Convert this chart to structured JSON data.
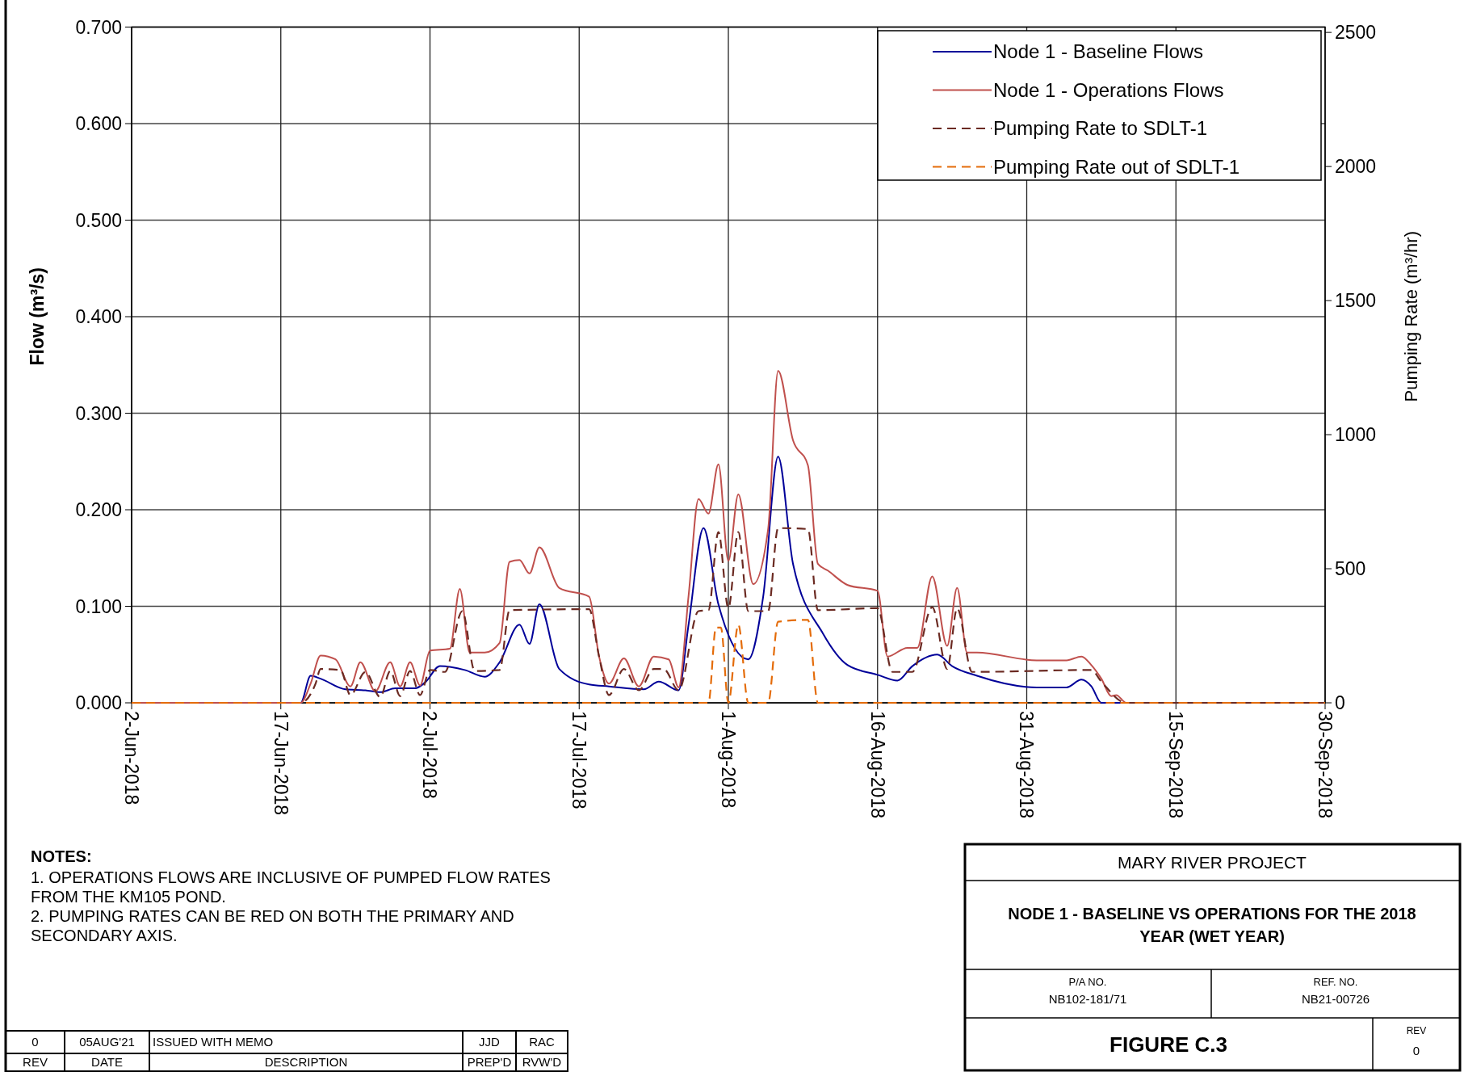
{
  "chart_data": {
    "type": "line",
    "title": "NODE 1 - BASELINE VS OPERATIONS FOR THE 2018 YEAR (WET YEAR)",
    "ylabel": "Flow (m³/s)",
    "y2label": "Pumping Rate (m³/hr)",
    "xlim": [
      "2018-06-02",
      "2018-09-30"
    ],
    "xticks": [
      {
        "value": "2018-06-02",
        "label": "2-Jun-2018"
      },
      {
        "value": "2018-06-17",
        "label": "17-Jun-2018"
      },
      {
        "value": "2018-07-02",
        "label": "2-Jul-2018"
      },
      {
        "value": "2018-07-17",
        "label": "17-Jul-2018"
      },
      {
        "value": "2018-08-01",
        "label": "1-Aug-2018"
      },
      {
        "value": "2018-08-16",
        "label": "16-Aug-2018"
      },
      {
        "value": "2018-08-31",
        "label": "31-Aug-2018"
      },
      {
        "value": "2018-09-15",
        "label": "15-Sep-2018"
      },
      {
        "value": "2018-09-30",
        "label": "30-Sep-2018"
      }
    ],
    "ylim": [
      0,
      0.7
    ],
    "yticks": [
      {
        "value": 0,
        "label": "0.000"
      },
      {
        "value": 0.1,
        "label": "0.100"
      },
      {
        "value": 0.2,
        "label": "0.200"
      },
      {
        "value": 0.3,
        "label": "0.300"
      },
      {
        "value": 0.4,
        "label": "0.400"
      },
      {
        "value": 0.5,
        "label": "0.500"
      },
      {
        "value": 0.6,
        "label": "0.600"
      },
      {
        "value": 0.7,
        "label": "0.700"
      }
    ],
    "y2lim": [
      0,
      2520
    ],
    "y2ticks": [
      0,
      500,
      1000,
      1500,
      2000,
      2500
    ],
    "grid": true,
    "legend": "top right",
    "series": [
      {
        "name": "Node 1 - Baseline Flows",
        "color": "#000099",
        "line_style": "solid",
        "x": [
          "2018-06-02",
          "2018-06-19",
          "2018-06-20",
          "2018-06-21",
          "2018-06-23T12:00",
          "2018-06-25T12:00",
          "2018-06-27",
          "2018-06-28T12:00",
          "2018-06-30T12:00",
          "2018-07-01T12:00",
          "2018-07-03",
          "2018-07-05T12:00",
          "2018-07-07T12:00",
          "2018-07-09",
          "2018-07-11",
          "2018-07-12",
          "2018-07-13",
          "2018-07-15",
          "2018-07-18",
          "2018-07-20",
          "2018-07-23T12:00",
          "2018-07-25",
          "2018-07-27",
          "2018-07-28",
          "2018-07-29T12:00",
          "2018-07-31",
          "2018-08-03",
          "2018-08-04T12:00",
          "2018-08-06",
          "2018-08-07T12:00",
          "2018-08-10T12:00",
          "2018-08-13",
          "2018-08-16",
          "2018-08-18",
          "2018-08-19T12:00",
          "2018-08-22",
          "2018-08-23T12:00",
          "2018-08-26",
          "2018-09-01",
          "2018-09-04",
          "2018-09-05T12:00",
          "2018-09-06T12:00",
          "2018-09-07T12:00",
          "2018-09-30"
        ],
        "values": [
          0,
          0,
          0.028,
          0.025,
          0.014,
          0.013,
          0.011,
          0.015,
          0.015,
          0.021,
          0.038,
          0.034,
          0.027,
          0.042,
          0.081,
          0.061,
          0.102,
          0.035,
          0.019,
          0.017,
          0.014,
          0.022,
          0.013,
          0.081,
          0.181,
          0.102,
          0.045,
          0.11,
          0.255,
          0.144,
          0.072,
          0.039,
          0.029,
          0.023,
          0.038,
          0.05,
          0.038,
          0.028,
          0.016,
          0.016,
          0.024,
          0.017,
          0,
          0
        ]
      },
      {
        "name": "Node 1 - Operations Flows",
        "color": "#c0504d",
        "line_style": "solid",
        "x": [
          "2018-06-02",
          "2018-06-19",
          "2018-06-20",
          "2018-06-21",
          "2018-06-22T12:00",
          "2018-06-24",
          "2018-06-25",
          "2018-06-26T12:00",
          "2018-06-28",
          "2018-06-29",
          "2018-06-30",
          "2018-07-01",
          "2018-07-02",
          "2018-07-04",
          "2018-07-05",
          "2018-07-06",
          "2018-07-07T12:00",
          "2018-07-09",
          "2018-07-10",
          "2018-07-11",
          "2018-07-12",
          "2018-07-13",
          "2018-07-15",
          "2018-07-18",
          "2018-07-19",
          "2018-07-20",
          "2018-07-21T12:00",
          "2018-07-23",
          "2018-07-24T12:00",
          "2018-07-26",
          "2018-07-27",
          "2018-07-28",
          "2018-07-29",
          "2018-07-30",
          "2018-07-31",
          "2018-08-01",
          "2018-08-02",
          "2018-08-03T12:00",
          "2018-08-05",
          "2018-08-06",
          "2018-08-07T12:00",
          "2018-08-09",
          "2018-08-10",
          "2018-08-11",
          "2018-08-13",
          "2018-08-16",
          "2018-08-17",
          "2018-08-19",
          "2018-08-20",
          "2018-08-21T12:00",
          "2018-08-23",
          "2018-08-24",
          "2018-08-25",
          "2018-08-26",
          "2018-09-01",
          "2018-09-04",
          "2018-09-05T12:00",
          "2018-09-06T12:00",
          "2018-09-07T12:00",
          "2018-09-08T12:00",
          "2018-09-09",
          "2018-09-10",
          "2018-09-30"
        ],
        "values": [
          0,
          0,
          0.02,
          0.049,
          0.045,
          0.017,
          0.042,
          0.012,
          0.042,
          0.017,
          0.042,
          0.018,
          0.054,
          0.056,
          0.118,
          0.052,
          0.052,
          0.062,
          0.146,
          0.148,
          0.134,
          0.161,
          0.119,
          0.11,
          0.048,
          0.02,
          0.046,
          0.017,
          0.048,
          0.045,
          0.016,
          0.111,
          0.211,
          0.196,
          0.247,
          0.147,
          0.216,
          0.123,
          0.18,
          0.344,
          0.272,
          0.246,
          0.144,
          0.137,
          0.122,
          0.116,
          0.048,
          0.057,
          0.057,
          0.131,
          0.059,
          0.119,
          0.052,
          0.052,
          0.044,
          0.044,
          0.048,
          0.039,
          0.025,
          0.007,
          0.008,
          0,
          0
        ]
      },
      {
        "name": "Pumping Rate to SDLT-1",
        "color": "#6b2a22",
        "line_style": "dashed",
        "x": [
          "2018-06-02",
          "2018-06-19",
          "2018-06-20T12:00",
          "2018-06-21",
          "2018-06-23",
          "2018-06-24",
          "2018-06-25T12:00",
          "2018-06-27",
          "2018-06-28",
          "2018-06-29",
          "2018-06-30",
          "2018-07-01",
          "2018-07-02",
          "2018-07-03T12:00",
          "2018-07-05T06:00",
          "2018-07-06T12:00",
          "2018-07-09",
          "2018-07-10",
          "2018-07-18",
          "2018-07-19",
          "2018-07-20",
          "2018-07-21T12:00",
          "2018-07-23",
          "2018-07-24T12:00",
          "2018-07-25T12:00",
          "2018-07-27",
          "2018-07-29",
          "2018-07-30",
          "2018-07-31",
          "2018-08-01",
          "2018-08-02",
          "2018-08-03",
          "2018-08-05",
          "2018-08-06",
          "2018-08-09",
          "2018-08-10",
          "2018-08-16",
          "2018-08-17T12:00",
          "2018-08-19T12:00",
          "2018-08-21T12:00",
          "2018-08-23",
          "2018-08-24",
          "2018-08-25T12:00",
          "2018-09-06T12:00",
          "2018-09-07T12:00",
          "2018-09-10",
          "2018-09-30"
        ],
        "values": [
          0,
          0,
          0.02,
          0.035,
          0.034,
          0.008,
          0.032,
          0.006,
          0.033,
          0.007,
          0.033,
          0.008,
          0.034,
          0.032,
          0.095,
          0.033,
          0.034,
          0.096,
          0.097,
          0.048,
          0.008,
          0.035,
          0.013,
          0.035,
          0.035,
          0.013,
          0.095,
          0.096,
          0.177,
          0.098,
          0.177,
          0.095,
          0.095,
          0.181,
          0.18,
          0.096,
          0.098,
          0.032,
          0.032,
          0.099,
          0.035,
          0.098,
          0.032,
          0.034,
          0.022,
          0,
          0
        ]
      },
      {
        "name": "Pumping Rate out of SDLT-1",
        "color": "#e46c0a",
        "line_style": "dashed",
        "x": [
          "2018-06-02",
          "2018-07-30",
          "2018-07-30T18:00",
          "2018-07-31T06:00",
          "2018-08-01",
          "2018-08-02",
          "2018-08-03",
          "2018-08-05",
          "2018-08-06",
          "2018-08-09",
          "2018-08-10",
          "2018-09-30"
        ],
        "values": [
          0,
          0,
          0.078,
          0.078,
          0,
          0.081,
          0,
          0,
          0.084,
          0.086,
          0,
          0
        ]
      }
    ],
    "annotations": [
      "NOTES:",
      "1. OPERATIONS FLOWS ARE INCLUSIVE OF PUMPED FLOW RATES FROM THE KM105 POND.",
      "2. PUMPING RATES CAN BE RED ON BOTH THE PRIMARY AND SECONDARY AXIS.",
      "0",
      "05AUG'21",
      "ISSUED WITH MEMO",
      "JJD",
      "RAC",
      "REV",
      "DATE",
      "DESCRIPTION",
      "PREP'D",
      "RVW'D",
      "MARY RIVER PROJECT",
      "P/A NO.",
      "NB102-181/71",
      "REF. NO.",
      "NB21-00726",
      "FIGURE C.3",
      "REV",
      "0"
    ]
  }
}
